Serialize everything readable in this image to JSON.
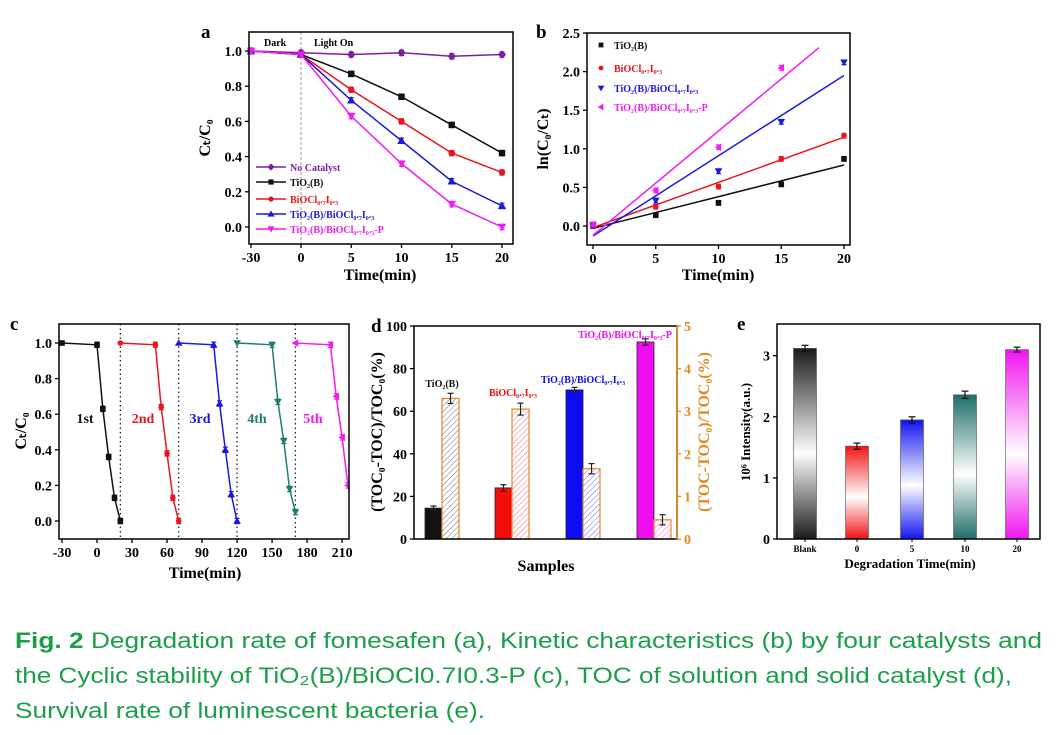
{
  "caption": {
    "fig_label": "Fig. 2",
    "line1": " Degradation rate of fomesafen (a), Kinetic characteristics (b) by four catalysts and",
    "line2": "the Cyclic stability of TiO₂(B)/BiOCl0.7I0.3-P (c), TOC of solution and solid catalyst (d),",
    "line3": "Survival rate of luminescent bacteria (e).",
    "color": "#1c9e4a"
  },
  "chart_data": [
    {
      "panel": "a",
      "type": "line",
      "xlabel": "Time(min)",
      "ylabel": "Cₜ/C₀",
      "x": [
        -30,
        0,
        5,
        10,
        15,
        20
      ],
      "xticks": [
        -30,
        0,
        5,
        10,
        15,
        20
      ],
      "yticks": [
        0.0,
        0.2,
        0.4,
        0.6,
        0.8,
        1.0
      ],
      "ylim": [
        -0.1,
        1.1
      ],
      "annotations": [
        "Dark",
        "Light On"
      ],
      "error": 0.015,
      "legend_position": "bottom-left",
      "series": [
        {
          "name": "No Catalyst",
          "color": "#7b1fa2",
          "marker": "diamond",
          "values": [
            1.0,
            0.99,
            0.98,
            0.99,
            0.97,
            0.98
          ]
        },
        {
          "name": "TiO₂(B)",
          "color": "#111111",
          "marker": "square",
          "values": [
            1.0,
            0.98,
            0.87,
            0.74,
            0.58,
            0.42
          ]
        },
        {
          "name": "BiOCl₀.₇I₀.₃",
          "color": "#e8161c",
          "marker": "circle",
          "values": [
            1.0,
            0.98,
            0.78,
            0.6,
            0.42,
            0.31
          ]
        },
        {
          "name": "TiO₂(B)/BiOCl₀.₇I₀.₃",
          "color": "#1a1adc",
          "marker": "tri-up",
          "values": [
            1.0,
            0.98,
            0.72,
            0.49,
            0.26,
            0.12
          ]
        },
        {
          "name": "TiO₂(B)/BiOCl₀.₇I₀.₃-P",
          "color": "#f01cf0",
          "marker": "tri-down",
          "values": [
            1.0,
            0.98,
            0.63,
            0.36,
            0.13,
            0.0
          ]
        }
      ]
    },
    {
      "panel": "b",
      "type": "scatter",
      "xlabel": "Time(min)",
      "ylabel": "ln(C₀/Cₜ)",
      "x": [
        0,
        5,
        10,
        15,
        20
      ],
      "xticks": [
        0,
        5,
        10,
        15,
        20
      ],
      "yticks": [
        0.0,
        0.5,
        1.0,
        1.5,
        2.0,
        2.5
      ],
      "xlim": [
        -0.5,
        20.5
      ],
      "ylim": [
        -0.25,
        2.5
      ],
      "error": 0.03,
      "legend_position": "top-left",
      "series": [
        {
          "name": "TiO₂(B)",
          "color": "#111111",
          "marker": "square",
          "values": [
            0.0,
            0.14,
            0.3,
            0.54,
            0.87
          ],
          "fit": [
            [
              0,
              -0.03
            ],
            [
              20,
              0.79
            ]
          ]
        },
        {
          "name": "BiOCl₀.₇I₀.₃",
          "color": "#e8161c",
          "marker": "circle",
          "values": [
            0.0,
            0.25,
            0.51,
            0.87,
            1.17
          ],
          "fit": [
            [
              0,
              -0.02
            ],
            [
              20,
              1.15
            ]
          ]
        },
        {
          "name": "TiO₂(B)/BiOCl₀.₇I₀.₃",
          "color": "#1a1adc",
          "marker": "tri-down",
          "values": [
            0.01,
            0.33,
            0.71,
            1.35,
            2.12
          ],
          "fit": [
            [
              0,
              -0.13
            ],
            [
              20,
              1.95
            ]
          ]
        },
        {
          "name": "TiO₂(B)/BiOCl₀.₇I₀.₃-P",
          "color": "#f01cf0",
          "marker": "tri-left",
          "values": [
            0.02,
            0.46,
            1.02,
            2.05,
            null
          ],
          "fit": [
            [
              0,
              -0.12
            ],
            [
              18,
              2.31
            ]
          ]
        }
      ]
    },
    {
      "panel": "c",
      "type": "line",
      "xlabel": "Time(min)",
      "ylabel": "Cₜ/C₀",
      "xticks": [
        -30,
        0,
        30,
        60,
        90,
        120,
        150,
        180,
        210
      ],
      "yticks": [
        0.0,
        0.2,
        0.4,
        0.6,
        0.8,
        1.0
      ],
      "xlim": [
        -32,
        216
      ],
      "ylim": [
        -0.1,
        1.1
      ],
      "cycle_dividers": [
        20,
        70,
        120,
        170
      ],
      "error": 0.015,
      "series": [
        {
          "name": "1st",
          "color": "#111111",
          "marker": "square",
          "x": [
            -30,
            0,
            5,
            10,
            15,
            20
          ],
          "values": [
            1.0,
            0.99,
            0.63,
            0.36,
            0.13,
            0.0
          ]
        },
        {
          "name": "2nd",
          "color": "#e8161c",
          "marker": "circle",
          "x": [
            20,
            50,
            55,
            60,
            65,
            70
          ],
          "values": [
            1.0,
            0.99,
            0.64,
            0.38,
            0.13,
            0.0
          ]
        },
        {
          "name": "3rd",
          "color": "#1a1adc",
          "marker": "tri-up",
          "x": [
            70,
            100,
            105,
            110,
            115,
            120
          ],
          "values": [
            1.0,
            0.99,
            0.66,
            0.4,
            0.15,
            0.0
          ]
        },
        {
          "name": "4th",
          "color": "#1f7d72",
          "marker": "tri-down",
          "x": [
            120,
            150,
            155,
            160,
            165,
            170
          ],
          "values": [
            1.0,
            0.99,
            0.67,
            0.45,
            0.18,
            0.05
          ]
        },
        {
          "name": "5th",
          "color": "#f01cf0",
          "marker": "tri-left",
          "x": [
            170,
            200,
            205,
            210,
            215,
            220
          ],
          "values": [
            1.0,
            0.99,
            0.7,
            0.47,
            0.2,
            0.07
          ]
        }
      ]
    },
    {
      "panel": "d",
      "type": "bar",
      "xlabel": "Samples",
      "ylabel": "(TOC₀-TOC)/TOC₀(%)",
      "ylabel_right": "(TOC-TOC₀)/TOC₀(%)",
      "yticks": [
        0,
        20,
        40,
        60,
        80,
        100
      ],
      "ylim": [
        0,
        100
      ],
      "yticks_right": [
        0,
        1,
        2,
        3,
        4,
        5
      ],
      "ylim_right": [
        0,
        5
      ],
      "right_axis_color": "#e08a22",
      "categories": [
        "TiO₂(B)",
        "BiOCl₀.₇I₀.₃",
        "TiO₂(B)/BiOCl₀.₇I₀.₃",
        "TiO₂(B)/BiOCl₀.₇I₀.₃-P"
      ],
      "colors": [
        "#111111",
        "#f20c0c",
        "#0c0cf0",
        "#f00cf0"
      ],
      "series": [
        {
          "name": "solution TOC removal (left axis, solid)",
          "values": [
            14.5,
            24,
            70,
            92.5
          ],
          "errors": [
            1,
            1.5,
            1.2,
            1.5
          ]
        },
        {
          "name": "solid catalyst TOC (right axis, hatched)",
          "values": [
            3.3,
            3.05,
            1.65,
            0.45
          ],
          "errors": [
            0.12,
            0.14,
            0.12,
            0.12
          ]
        }
      ]
    },
    {
      "panel": "e",
      "type": "bar",
      "xlabel": "Degradation Time(min)",
      "ylabel": "10⁶ Intensity(a.u.)",
      "categories": [
        "Blank",
        "0",
        "5",
        "10",
        "20"
      ],
      "values": [
        3.12,
        1.52,
        1.95,
        2.36,
        3.1
      ],
      "errors": [
        0.05,
        0.05,
        0.05,
        0.06,
        0.04
      ],
      "colors": [
        "#1a1a1a",
        "#f01414",
        "#1414f0",
        "#1e6e68",
        "#f014f0"
      ],
      "yticks": [
        0,
        1,
        2,
        3
      ],
      "ylim": [
        0,
        3.52
      ]
    }
  ]
}
